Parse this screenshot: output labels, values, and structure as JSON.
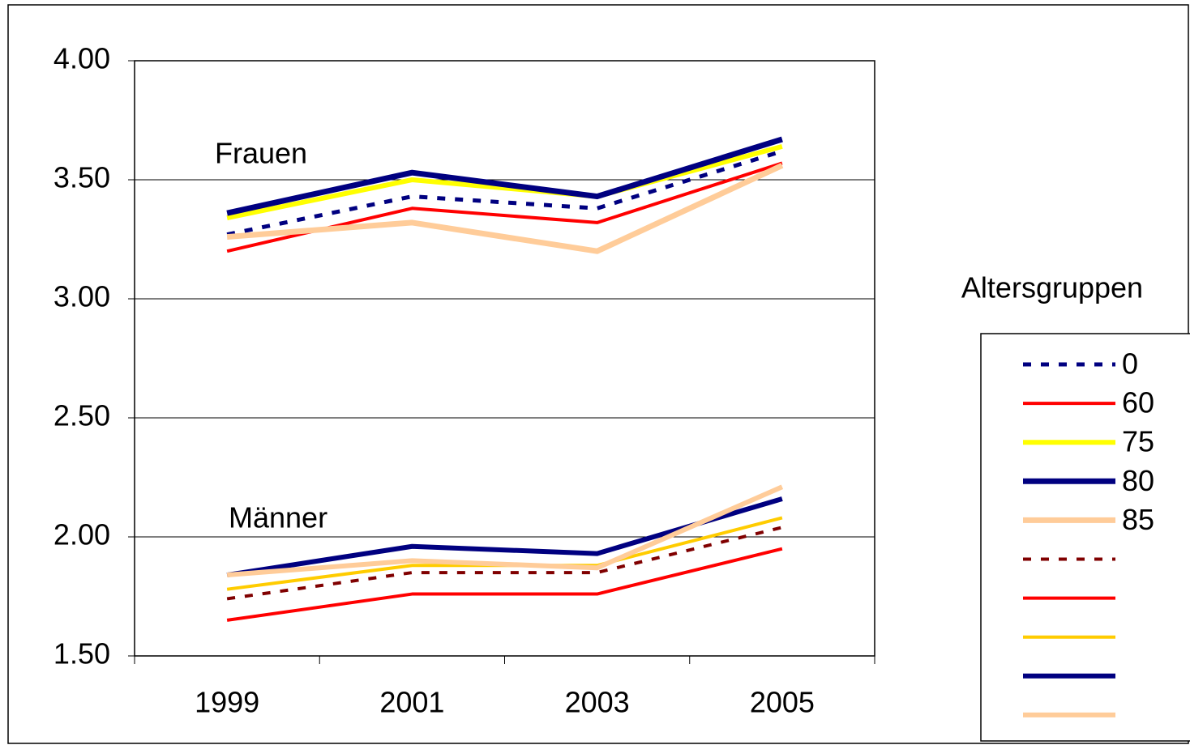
{
  "chart_data": {
    "type": "line",
    "categories": [
      "1999",
      "2001",
      "2003",
      "2005"
    ],
    "ylim": [
      1.5,
      4
    ],
    "yticks": [
      {
        "value": 1.5,
        "label": "1.50"
      },
      {
        "value": 2,
        "label": "2.00"
      },
      {
        "value": 2.5,
        "label": "2.50"
      },
      {
        "value": 3,
        "label": "3.00"
      },
      {
        "value": 3.5,
        "label": "3.50"
      },
      {
        "value": 4,
        "label": "4.00"
      }
    ],
    "grid": true,
    "legend_title": "Altersgruppen",
    "legend": "right",
    "annotations": [
      "Frauen",
      "Männer"
    ],
    "series": [
      {
        "name": "0",
        "color": "#000080",
        "dashed": true,
        "values": [
          3.27,
          3.43,
          3.38,
          3.62
        ]
      },
      {
        "name": "60",
        "color": "#ff0000",
        "dashed": false,
        "values": [
          3.2,
          3.38,
          3.32,
          3.57
        ]
      },
      {
        "name": "75",
        "color": "#ffff00",
        "dashed": false,
        "values": [
          3.34,
          3.5,
          3.43,
          3.64
        ]
      },
      {
        "name": "80",
        "color": "#000080",
        "dashed": false,
        "values": [
          3.36,
          3.53,
          3.43,
          3.67
        ]
      },
      {
        "name": "85",
        "color": "#ffcc99",
        "dashed": false,
        "values": [
          3.26,
          3.32,
          3.2,
          3.56
        ]
      },
      {
        "color": "#800000",
        "dashed": true,
        "values": [
          1.74,
          1.85,
          1.85,
          2.04
        ]
      },
      {
        "color": "#ff0000",
        "dashed": false,
        "values": [
          1.65,
          1.76,
          1.76,
          1.95
        ]
      },
      {
        "color": "#ffcc00",
        "dashed": false,
        "values": [
          1.78,
          1.88,
          1.88,
          2.08
        ]
      },
      {
        "color": "#000080",
        "dashed": false,
        "values": [
          1.84,
          1.96,
          1.93,
          2.16
        ]
      },
      {
        "color": "#ffcc99",
        "dashed": false,
        "values": [
          1.84,
          1.9,
          1.87,
          2.21
        ]
      }
    ]
  }
}
